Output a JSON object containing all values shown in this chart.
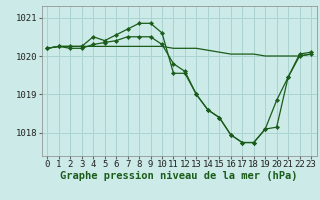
{
  "background_color": "#cceae7",
  "grid_color": "#aad4d0",
  "line_color": "#1a5c1a",
  "marker_color": "#1a5c1a",
  "xlabel": "Graphe pression niveau de la mer (hPa)",
  "xlabel_fontsize": 7.5,
  "tick_fontsize": 6.5,
  "ylim": [
    1017.4,
    1021.3
  ],
  "yticks": [
    1018,
    1019,
    1020,
    1021
  ],
  "xticks": [
    0,
    1,
    2,
    3,
    4,
    5,
    6,
    7,
    8,
    9,
    10,
    11,
    12,
    13,
    14,
    15,
    16,
    17,
    18,
    19,
    20,
    21,
    22,
    23
  ],
  "series1_x": [
    0,
    1,
    2,
    3,
    4,
    5,
    6,
    7,
    8,
    9,
    10,
    11,
    12,
    13,
    14,
    15,
    16,
    17,
    18,
    19,
    20,
    21,
    22,
    23
  ],
  "series1_y": [
    1020.2,
    1020.25,
    1020.25,
    1020.25,
    1020.25,
    1020.25,
    1020.25,
    1020.25,
    1020.25,
    1020.25,
    1020.25,
    1020.2,
    1020.2,
    1020.2,
    1020.15,
    1020.1,
    1020.05,
    1020.05,
    1020.05,
    1020.0,
    1020.0,
    1020.0,
    1020.0,
    1020.05
  ],
  "series2_x": [
    0,
    1,
    2,
    3,
    4,
    5,
    6,
    7,
    8,
    9,
    10,
    11,
    12,
    13,
    14,
    15,
    16,
    17,
    18,
    19,
    20,
    21,
    22,
    23
  ],
  "series2_y": [
    1020.2,
    1020.25,
    1020.25,
    1020.25,
    1020.5,
    1020.4,
    1020.55,
    1020.7,
    1020.85,
    1020.85,
    1020.6,
    1019.55,
    1019.55,
    1019.0,
    1018.6,
    1018.4,
    1017.95,
    1017.75,
    1017.75,
    1018.1,
    1018.85,
    1019.45,
    1020.05,
    1020.1
  ],
  "series3_x": [
    0,
    1,
    2,
    3,
    4,
    5,
    6,
    7,
    8,
    9,
    10,
    11,
    12,
    13,
    14,
    15,
    16,
    17,
    18,
    19,
    20,
    21,
    22,
    23
  ],
  "series3_y": [
    1020.2,
    1020.25,
    1020.2,
    1020.2,
    1020.3,
    1020.35,
    1020.4,
    1020.5,
    1020.5,
    1020.5,
    1020.3,
    1019.8,
    1019.6,
    1019.0,
    1018.6,
    1018.4,
    1017.95,
    1017.75,
    1017.75,
    1018.1,
    1018.15,
    1019.45,
    1020.0,
    1020.05
  ]
}
